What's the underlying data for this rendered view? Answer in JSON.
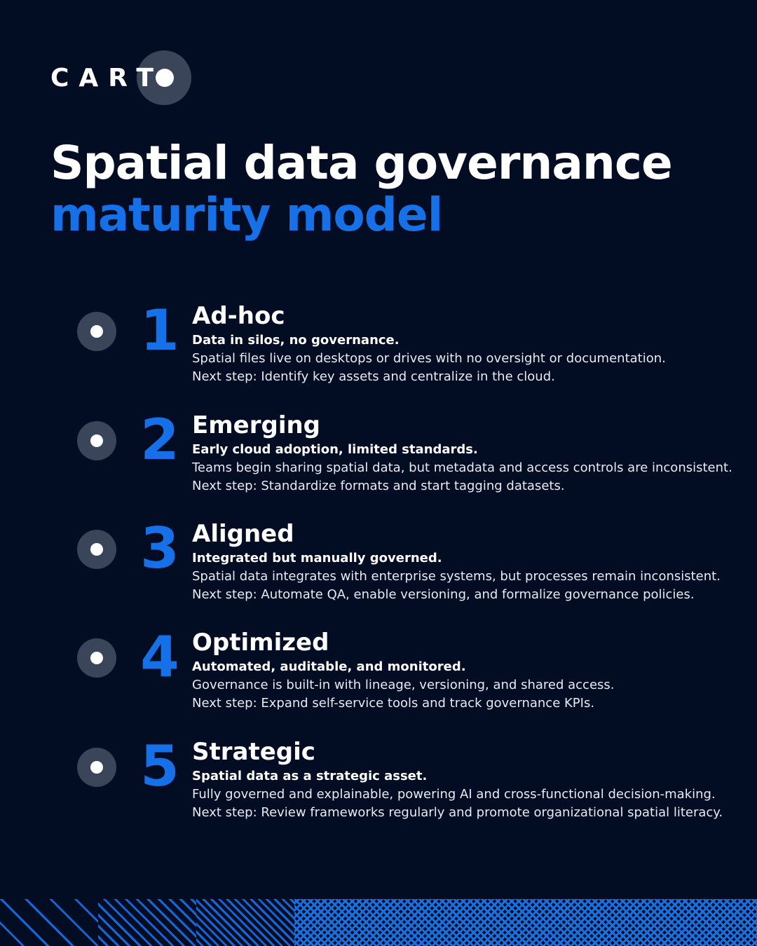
{
  "brand": {
    "logo_text": "CARTO",
    "accent": "#1671e8",
    "background": "#020c22"
  },
  "title": {
    "line1": "Spatial data governance",
    "line2": "maturity model"
  },
  "stages": [
    {
      "number": "1",
      "name": "Ad-hoc",
      "summary": "Data in silos, no governance.",
      "description": "Spatial files live on desktops or drives with no oversight or documentation.",
      "next_step": "Next step: Identify key assets and centralize in the cloud."
    },
    {
      "number": "2",
      "name": "Emerging",
      "summary": "Early cloud adoption, limited standards.",
      "description": "Teams begin sharing spatial data, but metadata and access controls are inconsistent.",
      "next_step": "Next step: Standardize formats and start tagging datasets."
    },
    {
      "number": "3",
      "name": "Aligned",
      "summary": "Integrated but manually governed.",
      "description": "Spatial data integrates with enterprise systems, but processes remain inconsistent.",
      "next_step": "Next step: Automate QA, enable versioning, and formalize governance policies."
    },
    {
      "number": "4",
      "name": "Optimized",
      "summary": "Automated, auditable, and monitored.",
      "description": "Governance is built-in with lineage, versioning, and shared access.",
      "next_step": "Next step: Expand self-service tools and track governance KPIs."
    },
    {
      "number": "5",
      "name": "Strategic",
      "summary": "Spatial data as a strategic asset.",
      "description": "Fully governed and explainable, powering AI and cross-functional decision-making.",
      "next_step": "Next step: Review frameworks regularly and promote organizational spatial literacy."
    }
  ]
}
